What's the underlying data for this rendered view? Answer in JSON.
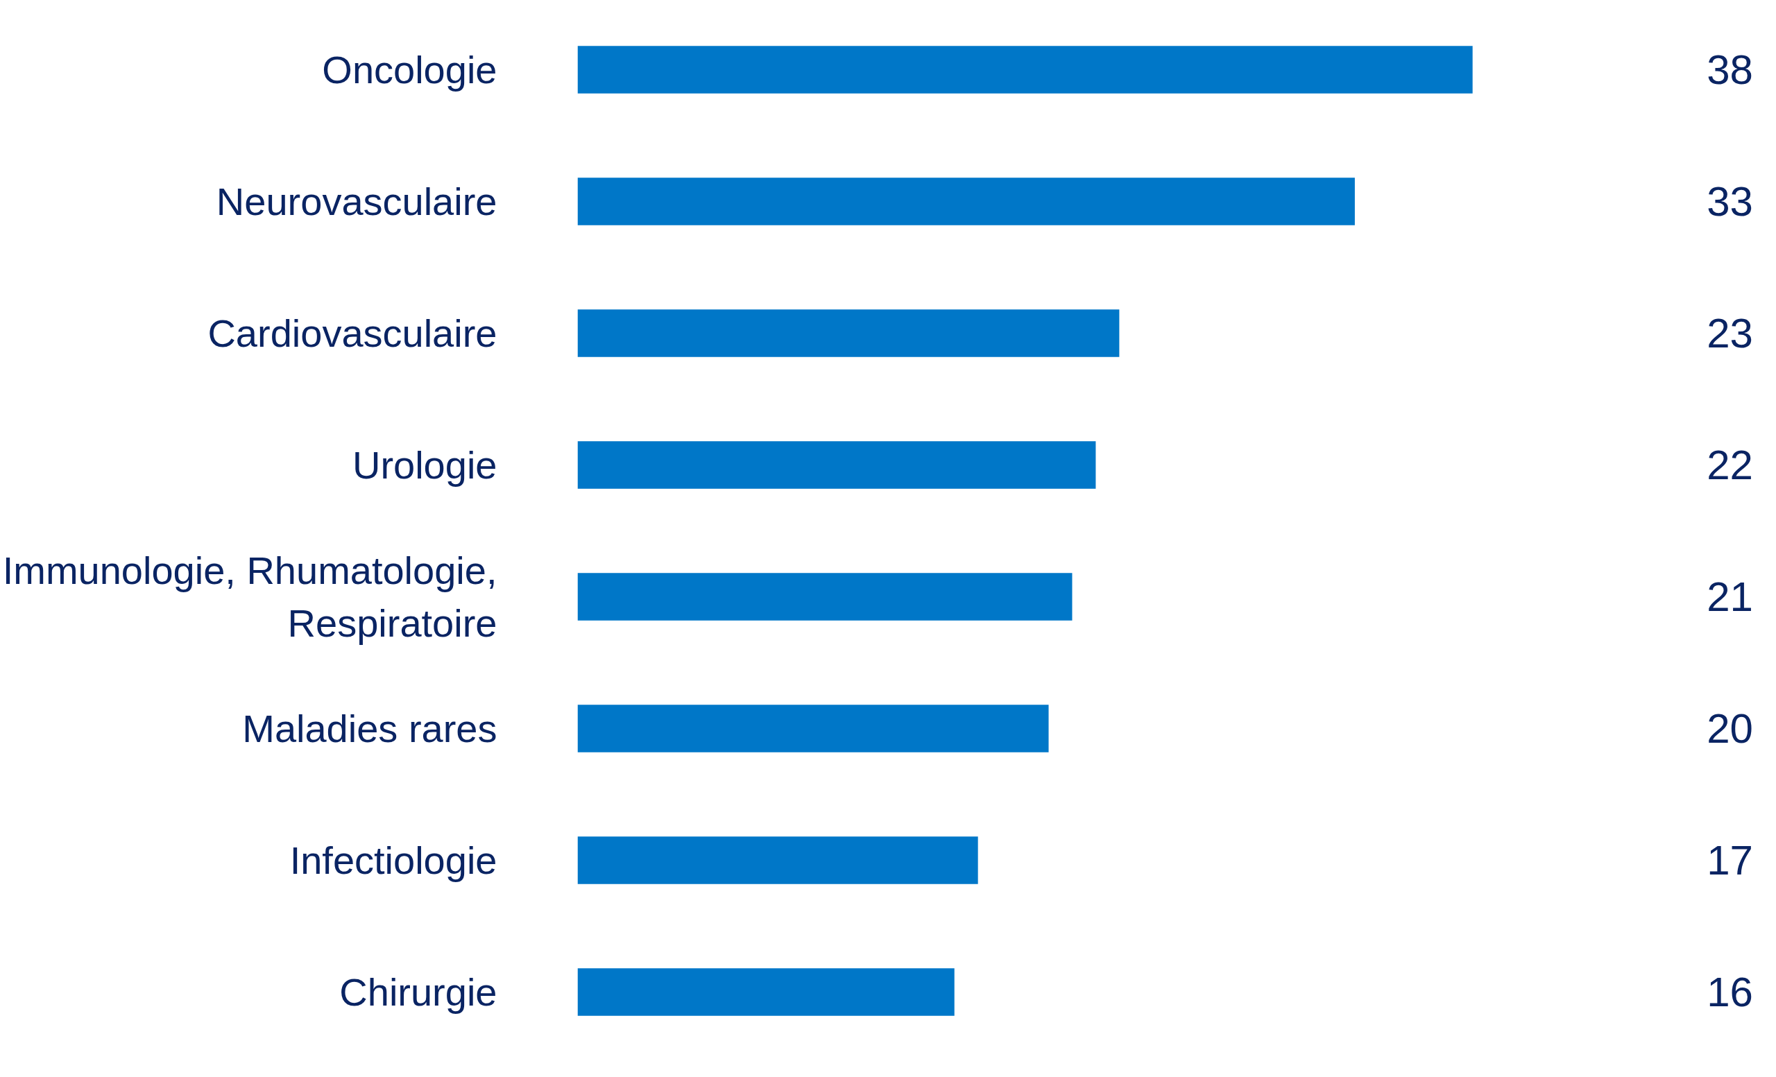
{
  "chart_data": {
    "type": "bar",
    "orientation": "horizontal",
    "categories": [
      "Oncologie",
      "Neurovasculaire",
      "Cardiovasculaire",
      "Urologie",
      "Immunologie, Rhumatologie, Respiratoire",
      "Maladies rares",
      "Infectiologie",
      "Chirurgie"
    ],
    "values": [
      38,
      33,
      23,
      22,
      21,
      20,
      17,
      16
    ],
    "color": "#0077c8",
    "data_labels": true,
    "grid": false
  }
}
